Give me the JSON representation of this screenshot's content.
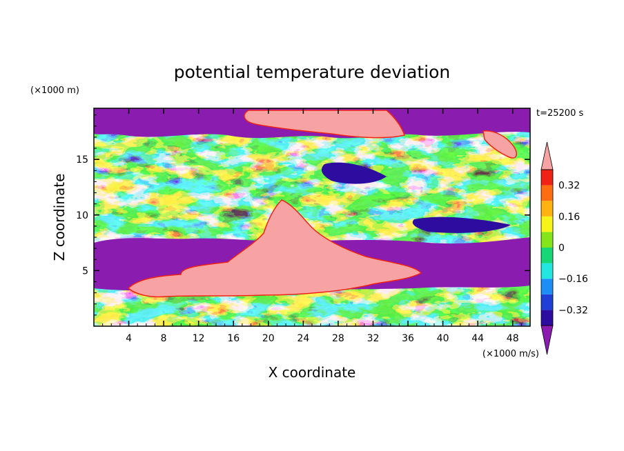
{
  "chart_data": {
    "type": "heatmap",
    "title": "potential temperature deviation",
    "xlabel": "X coordinate",
    "ylabel": "Z coordinate",
    "x_unit": "(×1000 m/s)",
    "y_unit": "(×1000 m)",
    "time_label": "t=25200 s",
    "xlim": [
      0,
      50
    ],
    "ylim": [
      0,
      19.6
    ],
    "x_ticks": [
      4,
      8,
      12,
      16,
      20,
      24,
      28,
      32,
      36,
      40,
      44,
      48
    ],
    "y_ticks": [
      5,
      10,
      15
    ],
    "colorbar": {
      "levels": [
        -0.4,
        -0.32,
        -0.24,
        -0.16,
        -0.08,
        0,
        0.08,
        0.16,
        0.24,
        0.32,
        0.4
      ],
      "labeled_levels": [
        0.32,
        0.16,
        0,
        -0.16,
        -0.32
      ],
      "labels": [
        "0.32",
        "0.16",
        "0",
        "−0.16",
        "−0.32"
      ],
      "colors": [
        "#8a1db0",
        "#2c0da0",
        "#1f3fd6",
        "#1c8ef5",
        "#24e6e0",
        "#17d675",
        "#85e51b",
        "#f6f419",
        "#ffb210",
        "#ff6d12",
        "#f02216",
        "#f8a3a3"
      ],
      "extend": "both"
    }
  }
}
